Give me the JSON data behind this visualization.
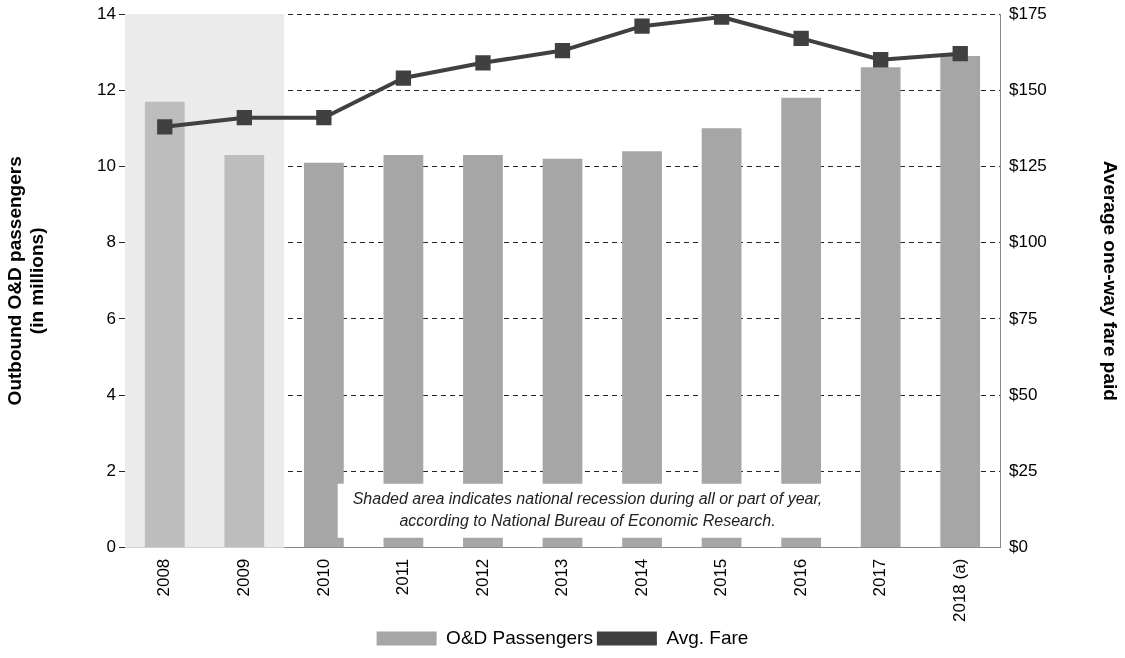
{
  "chart_data": {
    "type": "bar",
    "categories": [
      "2008",
      "2009",
      "2010",
      "2011",
      "2012",
      "2013",
      "2014",
      "2015",
      "2016",
      "2017",
      "2018 (a)"
    ],
    "ylabel": "Outbound O&D passengers\n(in millions)",
    "y2label": "Average one-way fare paid",
    "series": [
      {
        "name": "O&D Passengers",
        "colors": [
          "#bdbdbd",
          "#bdbdbd",
          "#a6a6a6",
          "#a6a6a6",
          "#a6a6a6",
          "#a6a6a6",
          "#a6a6a6",
          "#a6a6a6",
          "#a6a6a6",
          "#a6a6a6",
          "#a6a6a6"
        ],
        "values": [
          11.7,
          10.3,
          10.1,
          10.3,
          10.3,
          10.2,
          10.4,
          11.0,
          11.8,
          12.6,
          12.9
        ]
      },
      {
        "name": "Avg. Fare",
        "type": "line",
        "axis": "y2",
        "color": "#404040",
        "marker": "square",
        "values": [
          138,
          141,
          141,
          154,
          159,
          163,
          171,
          174,
          167,
          160,
          162
        ]
      }
    ],
    "ylim": [
      0,
      14
    ],
    "yticks": [
      0,
      2,
      4,
      6,
      8,
      10,
      12,
      14
    ],
    "y2lim": [
      0,
      175
    ],
    "y2ticks": [
      {
        "value": 0,
        "label": "$0"
      },
      {
        "value": 25,
        "label": "$25"
      },
      {
        "value": 50,
        "label": "$50"
      },
      {
        "value": 75,
        "label": "$75"
      },
      {
        "value": 100,
        "label": "$100"
      },
      {
        "value": 125,
        "label": "$125"
      },
      {
        "value": 150,
        "label": "$150"
      },
      {
        "value": 175,
        "label": "$175"
      }
    ],
    "bands": [
      {
        "axis": "x",
        "from": "2008",
        "to": "2009",
        "color": "#ebebeb"
      }
    ],
    "annotations": [
      "Shaded area indicates national recession during all or part of year,\naccording to National Bureau of Economic Research."
    ],
    "grid": "y",
    "legend": "bottom"
  }
}
